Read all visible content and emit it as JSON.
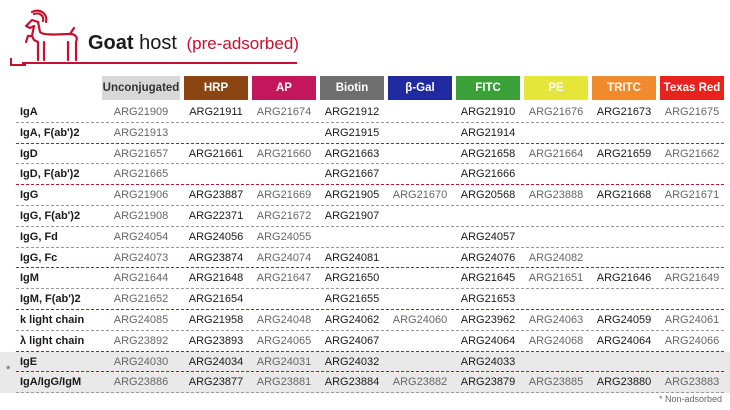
{
  "title": {
    "bold": "Goat",
    "rest": "host",
    "sub": "(pre-adsorbed)"
  },
  "columns": [
    {
      "label": "Unconjugated",
      "color": "#d8d8d8"
    },
    {
      "label": "HRP",
      "color": "#8b4513"
    },
    {
      "label": "AP",
      "color": "#c2185b"
    },
    {
      "label": "Biotin",
      "color": "#6e6e6e"
    },
    {
      "label": "β-Gal",
      "color": "#1f2aa0"
    },
    {
      "label": "FITC",
      "color": "#3aa038"
    },
    {
      "label": "PE",
      "color": "#e6e63a"
    },
    {
      "label": "TRITC",
      "color": "#f08a2c"
    },
    {
      "label": "Texas Red",
      "color": "#e8231c"
    }
  ],
  "rows": [
    {
      "label": "IgA",
      "cells": [
        "ARG21909",
        "ARG21911",
        "ARG21674",
        "ARG21912",
        "",
        "ARG21910",
        "ARG21676",
        "ARG21673",
        "ARG21675"
      ]
    },
    {
      "label": "IgA, F(ab')2",
      "cells": [
        "ARG21913",
        "",
        "",
        "ARG21915",
        "",
        "ARG21914",
        "",
        "",
        ""
      ]
    },
    {
      "label": "IgD",
      "cells": [
        "ARG21657",
        "ARG21661",
        "ARG21660",
        "ARG21663",
        "",
        "ARG21658",
        "ARG21664",
        "ARG21659",
        "ARG21662"
      ]
    },
    {
      "label": "IgD, F(ab')2",
      "cells": [
        "ARG21665",
        "",
        "",
        "ARG21667",
        "",
        "ARG21666",
        "",
        "",
        ""
      ]
    },
    {
      "label": "IgG",
      "cells": [
        "ARG21906",
        "ARG23887",
        "ARG21669",
        "ARG21905",
        "ARG21670",
        "ARG20568",
        "ARG23888",
        "ARG21668",
        "ARG21671"
      ]
    },
    {
      "label": "IgG, F(ab')2",
      "cells": [
        "ARG21908",
        "ARG22371",
        "ARG21672",
        "ARG21907",
        "",
        "",
        "",
        "",
        ""
      ]
    },
    {
      "label": "IgG, Fd",
      "cells": [
        "ARG24054",
        "ARG24056",
        "ARG24055",
        "",
        "",
        "ARG24057",
        "",
        "",
        ""
      ]
    },
    {
      "label": "IgG, Fc",
      "cells": [
        "ARG24073",
        "ARG23874",
        "ARG24074",
        "ARG24081",
        "",
        "ARG24076",
        "ARG24082",
        "",
        ""
      ]
    },
    {
      "label": "IgM",
      "cells": [
        "ARG21644",
        "ARG21648",
        "ARG21647",
        "ARG21650",
        "",
        "ARG21645",
        "ARG21651",
        "ARG21646",
        "ARG21649"
      ]
    },
    {
      "label": "IgM, F(ab')2",
      "cells": [
        "ARG21652",
        "ARG21654",
        "",
        "ARG21655",
        "",
        "ARG21653",
        "",
        "",
        ""
      ]
    },
    {
      "label": "k light chain",
      "cells": [
        "ARG24085",
        "ARG21958",
        "ARG24048",
        "ARG24062",
        "ARG24060",
        "ARG23962",
        "ARG24063",
        "ARG24059",
        "ARG24061"
      ]
    },
    {
      "label": "λ light chain",
      "cells": [
        "ARG23892",
        "ARG23893",
        "ARG24065",
        "ARG24067",
        "",
        "ARG24064",
        "ARG24068",
        "ARG24064",
        "ARG24066"
      ]
    },
    {
      "label": "IgE",
      "cells": [
        "ARG24030",
        "ARG24034",
        "ARG24031",
        "ARG24032",
        "",
        "ARG24033",
        "",
        "",
        ""
      ]
    },
    {
      "label": "IgA/IgG/IgM",
      "cells": [
        "ARG23886",
        "ARG23877",
        "ARG23881",
        "ARG23884",
        "ARG23882",
        "ARG23879",
        "ARG23885",
        "ARG23880",
        "ARG23883"
      ]
    }
  ],
  "marker": "*",
  "footnote": "* Non-adsorbed"
}
